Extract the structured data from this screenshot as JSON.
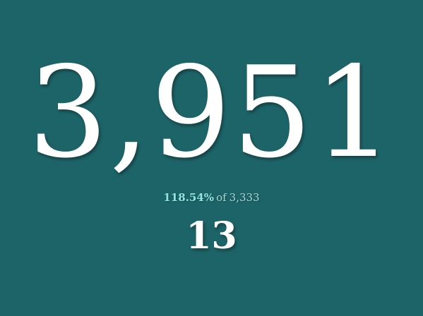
{
  "kpi": {
    "value": "3,951",
    "percent_of_target": "118.54%",
    "of_label": "of",
    "target": "3,333",
    "secondary_value": "13"
  },
  "colors": {
    "background": "#1d6468",
    "value_text": "#ffffff",
    "percent_accent": "#8fe6e0",
    "muted_text": "#a9d7d5"
  }
}
